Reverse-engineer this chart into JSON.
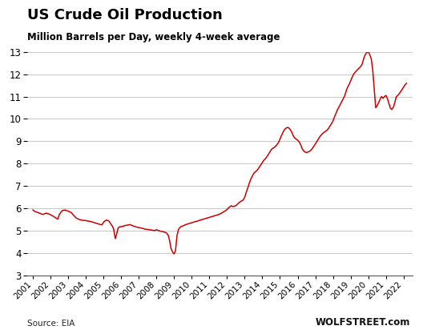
{
  "title": "US Crude Oil Production",
  "subtitle": "Million Barrels per Day, weekly 4-week average",
  "source_left": "Source: EIA",
  "source_right": "WOLFSTREET.com",
  "line_color": "#cc0000",
  "background_color": "#ffffff",
  "grid_color": "#c8c8c8",
  "ylim": [
    3,
    13
  ],
  "yticks": [
    3,
    4,
    5,
    6,
    7,
    8,
    9,
    10,
    11,
    12,
    13
  ],
  "x_years": [
    2001,
    2002,
    2003,
    2004,
    2005,
    2006,
    2007,
    2008,
    2009,
    2010,
    2011,
    2012,
    2013,
    2014,
    2015,
    2016,
    2017,
    2018,
    2019,
    2020,
    2021,
    2022
  ],
  "data": [
    [
      2001.0,
      5.94
    ],
    [
      2001.08,
      5.88
    ],
    [
      2001.17,
      5.85
    ],
    [
      2001.25,
      5.82
    ],
    [
      2001.33,
      5.8
    ],
    [
      2001.42,
      5.78
    ],
    [
      2001.5,
      5.75
    ],
    [
      2001.58,
      5.73
    ],
    [
      2001.67,
      5.76
    ],
    [
      2001.75,
      5.79
    ],
    [
      2001.83,
      5.77
    ],
    [
      2001.92,
      5.75
    ],
    [
      2002.0,
      5.72
    ],
    [
      2002.08,
      5.68
    ],
    [
      2002.17,
      5.65
    ],
    [
      2002.25,
      5.6
    ],
    [
      2002.33,
      5.56
    ],
    [
      2002.42,
      5.52
    ],
    [
      2002.5,
      5.72
    ],
    [
      2002.58,
      5.82
    ],
    [
      2002.67,
      5.9
    ],
    [
      2002.75,
      5.92
    ],
    [
      2002.83,
      5.93
    ],
    [
      2002.92,
      5.9
    ],
    [
      2003.0,
      5.88
    ],
    [
      2003.08,
      5.85
    ],
    [
      2003.17,
      5.82
    ],
    [
      2003.25,
      5.75
    ],
    [
      2003.33,
      5.68
    ],
    [
      2003.42,
      5.6
    ],
    [
      2003.5,
      5.55
    ],
    [
      2003.58,
      5.52
    ],
    [
      2003.67,
      5.5
    ],
    [
      2003.75,
      5.48
    ],
    [
      2003.83,
      5.47
    ],
    [
      2003.92,
      5.46
    ],
    [
      2004.0,
      5.46
    ],
    [
      2004.08,
      5.44
    ],
    [
      2004.17,
      5.43
    ],
    [
      2004.25,
      5.42
    ],
    [
      2004.33,
      5.4
    ],
    [
      2004.42,
      5.38
    ],
    [
      2004.5,
      5.36
    ],
    [
      2004.58,
      5.34
    ],
    [
      2004.67,
      5.32
    ],
    [
      2004.75,
      5.3
    ],
    [
      2004.83,
      5.28
    ],
    [
      2004.92,
      5.27
    ],
    [
      2005.0,
      5.38
    ],
    [
      2005.08,
      5.44
    ],
    [
      2005.17,
      5.48
    ],
    [
      2005.25,
      5.46
    ],
    [
      2005.33,
      5.42
    ],
    [
      2005.42,
      5.3
    ],
    [
      2005.5,
      5.22
    ],
    [
      2005.58,
      5.08
    ],
    [
      2005.67,
      4.65
    ],
    [
      2005.75,
      4.85
    ],
    [
      2005.83,
      5.12
    ],
    [
      2005.92,
      5.18
    ],
    [
      2006.0,
      5.18
    ],
    [
      2006.08,
      5.2
    ],
    [
      2006.17,
      5.22
    ],
    [
      2006.25,
      5.24
    ],
    [
      2006.33,
      5.25
    ],
    [
      2006.42,
      5.26
    ],
    [
      2006.5,
      5.28
    ],
    [
      2006.58,
      5.25
    ],
    [
      2006.67,
      5.22
    ],
    [
      2006.75,
      5.2
    ],
    [
      2006.83,
      5.18
    ],
    [
      2006.92,
      5.16
    ],
    [
      2007.0,
      5.15
    ],
    [
      2007.08,
      5.13
    ],
    [
      2007.17,
      5.12
    ],
    [
      2007.25,
      5.1
    ],
    [
      2007.33,
      5.08
    ],
    [
      2007.42,
      5.07
    ],
    [
      2007.5,
      5.06
    ],
    [
      2007.58,
      5.05
    ],
    [
      2007.67,
      5.04
    ],
    [
      2007.75,
      5.03
    ],
    [
      2007.83,
      5.02
    ],
    [
      2007.92,
      5.01
    ],
    [
      2008.0,
      5.05
    ],
    [
      2008.08,
      5.02
    ],
    [
      2008.17,
      5.0
    ],
    [
      2008.25,
      4.98
    ],
    [
      2008.33,
      4.97
    ],
    [
      2008.42,
      4.95
    ],
    [
      2008.5,
      4.93
    ],
    [
      2008.58,
      4.9
    ],
    [
      2008.67,
      4.8
    ],
    [
      2008.75,
      4.55
    ],
    [
      2008.83,
      4.2
    ],
    [
      2008.92,
      4.05
    ],
    [
      2009.0,
      3.97
    ],
    [
      2009.08,
      4.1
    ],
    [
      2009.17,
      4.8
    ],
    [
      2009.25,
      5.05
    ],
    [
      2009.33,
      5.15
    ],
    [
      2009.42,
      5.2
    ],
    [
      2009.5,
      5.22
    ],
    [
      2009.58,
      5.25
    ],
    [
      2009.67,
      5.28
    ],
    [
      2009.75,
      5.3
    ],
    [
      2009.83,
      5.32
    ],
    [
      2009.92,
      5.34
    ],
    [
      2010.0,
      5.36
    ],
    [
      2010.08,
      5.38
    ],
    [
      2010.17,
      5.4
    ],
    [
      2010.25,
      5.42
    ],
    [
      2010.33,
      5.44
    ],
    [
      2010.42,
      5.46
    ],
    [
      2010.5,
      5.48
    ],
    [
      2010.58,
      5.5
    ],
    [
      2010.67,
      5.52
    ],
    [
      2010.75,
      5.54
    ],
    [
      2010.83,
      5.56
    ],
    [
      2010.92,
      5.58
    ],
    [
      2011.0,
      5.6
    ],
    [
      2011.08,
      5.62
    ],
    [
      2011.17,
      5.64
    ],
    [
      2011.25,
      5.66
    ],
    [
      2011.33,
      5.68
    ],
    [
      2011.42,
      5.7
    ],
    [
      2011.5,
      5.72
    ],
    [
      2011.58,
      5.75
    ],
    [
      2011.67,
      5.78
    ],
    [
      2011.75,
      5.82
    ],
    [
      2011.83,
      5.86
    ],
    [
      2011.92,
      5.9
    ],
    [
      2012.0,
      5.95
    ],
    [
      2012.08,
      6.02
    ],
    [
      2012.17,
      6.08
    ],
    [
      2012.25,
      6.12
    ],
    [
      2012.33,
      6.08
    ],
    [
      2012.42,
      6.1
    ],
    [
      2012.5,
      6.12
    ],
    [
      2012.58,
      6.18
    ],
    [
      2012.67,
      6.25
    ],
    [
      2012.75,
      6.3
    ],
    [
      2012.83,
      6.34
    ],
    [
      2012.92,
      6.38
    ],
    [
      2013.0,
      6.5
    ],
    [
      2013.08,
      6.7
    ],
    [
      2013.17,
      6.9
    ],
    [
      2013.25,
      7.1
    ],
    [
      2013.33,
      7.28
    ],
    [
      2013.42,
      7.42
    ],
    [
      2013.5,
      7.55
    ],
    [
      2013.58,
      7.62
    ],
    [
      2013.67,
      7.68
    ],
    [
      2013.75,
      7.75
    ],
    [
      2013.83,
      7.85
    ],
    [
      2013.92,
      7.95
    ],
    [
      2014.0,
      8.05
    ],
    [
      2014.08,
      8.15
    ],
    [
      2014.17,
      8.22
    ],
    [
      2014.25,
      8.3
    ],
    [
      2014.33,
      8.4
    ],
    [
      2014.42,
      8.52
    ],
    [
      2014.5,
      8.62
    ],
    [
      2014.58,
      8.68
    ],
    [
      2014.67,
      8.72
    ],
    [
      2014.75,
      8.78
    ],
    [
      2014.83,
      8.85
    ],
    [
      2014.92,
      8.95
    ],
    [
      2015.0,
      9.1
    ],
    [
      2015.08,
      9.25
    ],
    [
      2015.17,
      9.4
    ],
    [
      2015.25,
      9.52
    ],
    [
      2015.33,
      9.58
    ],
    [
      2015.42,
      9.62
    ],
    [
      2015.5,
      9.6
    ],
    [
      2015.58,
      9.52
    ],
    [
      2015.67,
      9.4
    ],
    [
      2015.75,
      9.25
    ],
    [
      2015.83,
      9.15
    ],
    [
      2015.92,
      9.1
    ],
    [
      2016.0,
      9.05
    ],
    [
      2016.08,
      8.98
    ],
    [
      2016.17,
      8.85
    ],
    [
      2016.25,
      8.68
    ],
    [
      2016.33,
      8.58
    ],
    [
      2016.42,
      8.52
    ],
    [
      2016.5,
      8.5
    ],
    [
      2016.58,
      8.52
    ],
    [
      2016.67,
      8.55
    ],
    [
      2016.75,
      8.6
    ],
    [
      2016.83,
      8.68
    ],
    [
      2016.92,
      8.78
    ],
    [
      2017.0,
      8.88
    ],
    [
      2017.08,
      8.98
    ],
    [
      2017.17,
      9.1
    ],
    [
      2017.25,
      9.2
    ],
    [
      2017.33,
      9.28
    ],
    [
      2017.42,
      9.35
    ],
    [
      2017.5,
      9.4
    ],
    [
      2017.58,
      9.45
    ],
    [
      2017.67,
      9.5
    ],
    [
      2017.75,
      9.58
    ],
    [
      2017.83,
      9.68
    ],
    [
      2017.92,
      9.8
    ],
    [
      2018.0,
      9.9
    ],
    [
      2018.08,
      10.08
    ],
    [
      2018.17,
      10.25
    ],
    [
      2018.25,
      10.4
    ],
    [
      2018.33,
      10.52
    ],
    [
      2018.42,
      10.65
    ],
    [
      2018.5,
      10.78
    ],
    [
      2018.58,
      10.9
    ],
    [
      2018.67,
      11.05
    ],
    [
      2018.75,
      11.25
    ],
    [
      2018.83,
      11.42
    ],
    [
      2018.92,
      11.55
    ],
    [
      2019.0,
      11.7
    ],
    [
      2019.08,
      11.85
    ],
    [
      2019.17,
      12.0
    ],
    [
      2019.25,
      12.08
    ],
    [
      2019.33,
      12.15
    ],
    [
      2019.42,
      12.22
    ],
    [
      2019.5,
      12.28
    ],
    [
      2019.58,
      12.35
    ],
    [
      2019.67,
      12.48
    ],
    [
      2019.75,
      12.72
    ],
    [
      2019.83,
      12.88
    ],
    [
      2019.92,
      12.96
    ],
    [
      2020.0,
      13.0
    ],
    [
      2020.08,
      12.88
    ],
    [
      2020.17,
      12.68
    ],
    [
      2020.25,
      12.2
    ],
    [
      2020.33,
      11.4
    ],
    [
      2020.42,
      10.5
    ],
    [
      2020.5,
      10.58
    ],
    [
      2020.58,
      10.72
    ],
    [
      2020.67,
      10.88
    ],
    [
      2020.75,
      11.0
    ],
    [
      2020.83,
      10.92
    ],
    [
      2020.92,
      11.0
    ],
    [
      2021.0,
      11.05
    ],
    [
      2021.08,
      10.92
    ],
    [
      2021.17,
      10.68
    ],
    [
      2021.25,
      10.48
    ],
    [
      2021.33,
      10.42
    ],
    [
      2021.42,
      10.52
    ],
    [
      2021.5,
      10.72
    ],
    [
      2021.58,
      10.98
    ],
    [
      2021.67,
      11.05
    ],
    [
      2021.75,
      11.12
    ],
    [
      2021.83,
      11.22
    ],
    [
      2021.92,
      11.32
    ],
    [
      2022.0,
      11.42
    ],
    [
      2022.08,
      11.52
    ],
    [
      2022.17,
      11.6
    ]
  ]
}
